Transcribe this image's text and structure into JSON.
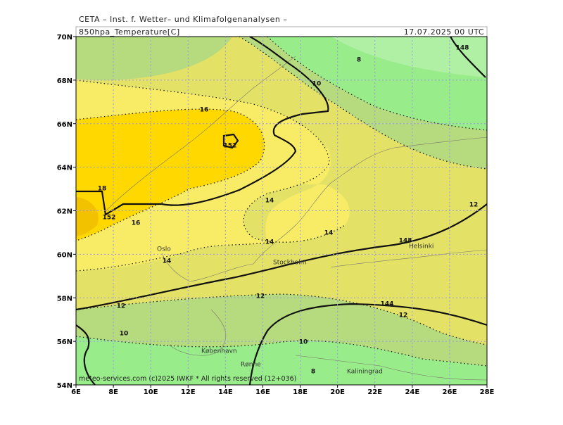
{
  "header": {
    "title": "CETA – Inst. f. Wetter– und Klimafolgenanalysen –",
    "field": "850hpa_Temperature[C]",
    "valid": "17.07.2025 00 UTC"
  },
  "axes": {
    "lat": [
      "70N",
      "68N",
      "66N",
      "64N",
      "62N",
      "60N",
      "58N",
      "56N",
      "54N"
    ],
    "lon": [
      "6E",
      "8E",
      "10E",
      "12E",
      "14E",
      "16E",
      "18E",
      "20E",
      "22E",
      "24E",
      "26E",
      "28E"
    ]
  },
  "contour_labels": [
    "8",
    "10",
    "16",
    "152",
    "18",
    "152",
    "16",
    "14",
    "14",
    "14",
    "14",
    "12",
    "148",
    "12",
    "12",
    "144",
    "12",
    "10",
    "10",
    "8",
    "148"
  ],
  "places": [
    "Oslo",
    "Stockholm",
    "Helsinki",
    "København",
    "Rønne",
    "Kaliningrad"
  ],
  "footer": "meteo-services.com  (c)2025 IWKF * All rights reserved (12+036)"
}
